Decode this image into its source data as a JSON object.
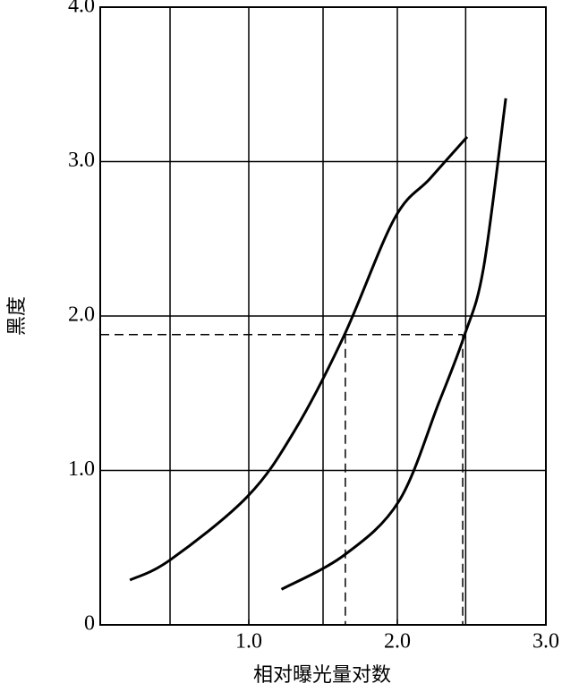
{
  "chart_data": {
    "type": "line",
    "x_label": "相对曝光量对数",
    "y_label": "黑度",
    "xlim": [
      0,
      3
    ],
    "ylim": [
      0,
      4
    ],
    "xticks": [
      {
        "value": 1,
        "label": "1.0"
      },
      {
        "value": 2,
        "label": "2.0"
      },
      {
        "value": 3,
        "label": "3.0"
      }
    ],
    "yticks": [
      0,
      {
        "value": 1,
        "label": "1.0"
      },
      {
        "value": 2,
        "label": "2.0"
      },
      {
        "value": 3,
        "label": "3.0"
      },
      {
        "value": 4,
        "label": "4.0"
      }
    ],
    "xgrid": [
      0.47,
      1,
      1.5,
      2,
      2.46
    ],
    "grid": true,
    "series": [
      {
        "color": "#000000",
        "x": [
          0.2,
          0.47,
          0.99,
          1.31,
          1.64,
          1.98,
          2.22,
          2.47
        ],
        "values": [
          0.29,
          0.42,
          0.83,
          1.26,
          1.87,
          2.63,
          2.89,
          3.16
        ]
      },
      {
        "color": "#000000",
        "x": [
          1.22,
          1.64,
          2.01,
          2.28,
          2.45,
          2.58,
          2.73
        ],
        "values": [
          0.23,
          0.45,
          0.8,
          1.44,
          1.87,
          2.31,
          3.41
        ]
      }
    ],
    "reference": {
      "y": 1.88,
      "x": [
        1.65,
        2.44
      ]
    }
  }
}
